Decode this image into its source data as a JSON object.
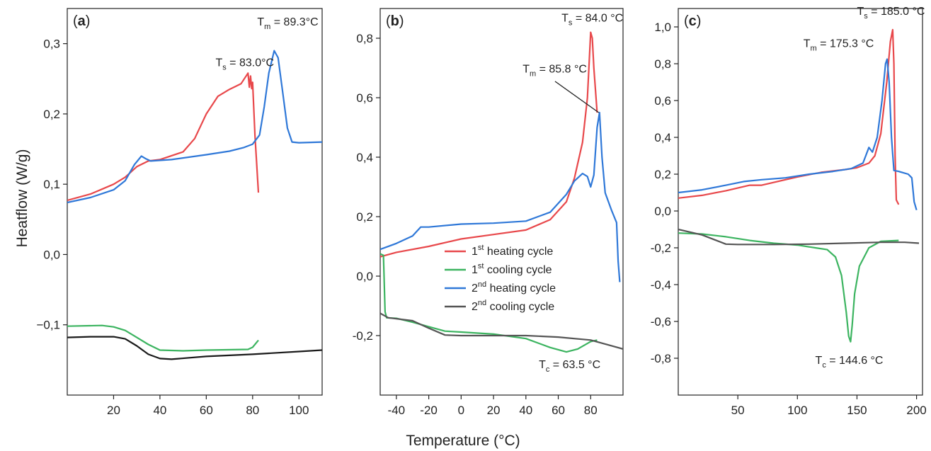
{
  "figure": {
    "y_axis_label": "Heatflow (W/g)",
    "x_axis_label": "Temperature (°C)"
  },
  "colors": {
    "heating1": "#e8484b",
    "cooling1": "#3cb460",
    "heating2": "#2f78d8",
    "cooling2_a": "#1a1a1a",
    "cooling2": "#555555"
  },
  "legend": {
    "placement": "panel b, center",
    "entries": [
      {
        "pre": "1",
        "sup": "st",
        "post": " heating cycle",
        "color": "#e8484b"
      },
      {
        "pre": "1",
        "sup": "st",
        "post": " cooling cycle",
        "color": "#3cb460"
      },
      {
        "pre": "2",
        "sup": "nd",
        "post": " heating cycle",
        "color": "#2f78d8"
      },
      {
        "pre": "2",
        "sup": "nd",
        "post": " cooling cycle",
        "color": "#555555"
      }
    ]
  },
  "chart_data": [
    {
      "type": "line",
      "panel_label": "(a)",
      "xlim": [
        0,
        110
      ],
      "ylim": [
        -0.2,
        0.35
      ],
      "xticks": [
        20,
        40,
        60,
        80,
        100
      ],
      "yticks": [
        -0.1,
        0.0,
        0.1,
        0.2,
        0.3
      ],
      "ytick_labels": [
        "−0,1",
        "0,0",
        "0,1",
        "0,2",
        "0,3"
      ],
      "series": [
        {
          "color": "#e8484b",
          "points": [
            [
              0,
              0.077
            ],
            [
              10,
              0.086
            ],
            [
              20,
              0.1
            ],
            [
              25,
              0.11
            ],
            [
              30,
              0.125
            ],
            [
              35,
              0.133
            ],
            [
              40,
              0.135
            ],
            [
              50,
              0.146
            ],
            [
              55,
              0.165
            ],
            [
              60,
              0.2
            ],
            [
              65,
              0.225
            ],
            [
              70,
              0.235
            ],
            [
              75,
              0.243
            ],
            [
              78,
              0.258
            ],
            [
              78.6,
              0.238
            ],
            [
              79.1,
              0.254
            ],
            [
              79.6,
              0.236
            ],
            [
              80,
              0.245
            ],
            [
              81,
              0.17
            ],
            [
              82.5,
              0.088
            ]
          ]
        },
        {
          "color": "#3cb460",
          "points": [
            [
              0,
              -0.102
            ],
            [
              15,
              -0.101
            ],
            [
              20,
              -0.103
            ],
            [
              25,
              -0.108
            ],
            [
              30,
              -0.118
            ],
            [
              35,
              -0.128
            ],
            [
              40,
              -0.136
            ],
            [
              50,
              -0.137
            ],
            [
              60,
              -0.136
            ],
            [
              78,
              -0.135
            ],
            [
              80,
              -0.132
            ],
            [
              82.5,
              -0.122
            ]
          ]
        },
        {
          "color": "#2f78d8",
          "points": [
            [
              0,
              0.074
            ],
            [
              10,
              0.081
            ],
            [
              20,
              0.092
            ],
            [
              25,
              0.105
            ],
            [
              29,
              0.128
            ],
            [
              32,
              0.14
            ],
            [
              34,
              0.136
            ],
            [
              36,
              0.133
            ],
            [
              45,
              0.135
            ],
            [
              60,
              0.142
            ],
            [
              70,
              0.147
            ],
            [
              76,
              0.152
            ],
            [
              80,
              0.157
            ],
            [
              83,
              0.17
            ],
            [
              85,
              0.21
            ],
            [
              87,
              0.258
            ],
            [
              89.3,
              0.29
            ],
            [
              91,
              0.28
            ],
            [
              93,
              0.23
            ],
            [
              95,
              0.18
            ],
            [
              97,
              0.16
            ],
            [
              100,
              0.159
            ],
            [
              110,
              0.16
            ]
          ]
        },
        {
          "color": "#1a1a1a",
          "points": [
            [
              0,
              -0.118
            ],
            [
              10,
              -0.117
            ],
            [
              20,
              -0.117
            ],
            [
              25,
              -0.12
            ],
            [
              30,
              -0.13
            ],
            [
              35,
              -0.142
            ],
            [
              40,
              -0.148
            ],
            [
              45,
              -0.149
            ],
            [
              60,
              -0.145
            ],
            [
              80,
              -0.142
            ],
            [
              100,
              -0.138
            ],
            [
              110,
              -0.136
            ]
          ]
        }
      ],
      "annotations": [
        {
          "pre": "T",
          "sub": "m",
          "post": " = 89.3°C",
          "x": 82,
          "y": 0.326
        },
        {
          "pre": "T",
          "sub": "s",
          "post": " = 83.0°C",
          "x": 64,
          "y": 0.268
        }
      ]
    },
    {
      "type": "line",
      "panel_label": "(b)",
      "xlim": [
        -50,
        100
      ],
      "ylim": [
        -0.4,
        0.9
      ],
      "xticks": [
        -40,
        -20,
        0,
        20,
        40,
        60,
        80
      ],
      "yticks": [
        -0.2,
        0.0,
        0.2,
        0.4,
        0.6,
        0.8
      ],
      "ytick_labels": [
        "-0,2",
        "0,0",
        "0,2",
        "0,4",
        "0,6",
        "0,8"
      ],
      "series": [
        {
          "color": "#e8484b",
          "points": [
            [
              -50,
              0.065
            ],
            [
              -40,
              0.08
            ],
            [
              -20,
              0.1
            ],
            [
              0,
              0.125
            ],
            [
              20,
              0.14
            ],
            [
              40,
              0.155
            ],
            [
              55,
              0.19
            ],
            [
              65,
              0.25
            ],
            [
              70,
              0.33
            ],
            [
              75,
              0.45
            ],
            [
              78,
              0.6
            ],
            [
              80,
              0.82
            ],
            [
              81,
              0.8
            ],
            [
              82,
              0.7
            ],
            [
              84,
              0.55
            ]
          ]
        },
        {
          "color": "#3cb460",
          "points": [
            [
              -50,
              0.075
            ],
            [
              -48,
              0.07
            ],
            [
              -47,
              -0.12
            ],
            [
              -46,
              -0.14
            ],
            [
              -40,
              -0.142
            ],
            [
              -30,
              -0.155
            ],
            [
              -20,
              -0.17
            ],
            [
              -10,
              -0.185
            ],
            [
              0,
              -0.188
            ],
            [
              20,
              -0.195
            ],
            [
              40,
              -0.21
            ],
            [
              55,
              -0.24
            ],
            [
              65,
              -0.255
            ],
            [
              72,
              -0.245
            ],
            [
              80,
              -0.22
            ],
            [
              84,
              -0.215
            ]
          ]
        },
        {
          "color": "#2f78d8",
          "points": [
            [
              -50,
              0.09
            ],
            [
              -40,
              0.11
            ],
            [
              -30,
              0.135
            ],
            [
              -25,
              0.165
            ],
            [
              -20,
              0.165
            ],
            [
              0,
              0.175
            ],
            [
              20,
              0.178
            ],
            [
              40,
              0.185
            ],
            [
              55,
              0.215
            ],
            [
              65,
              0.275
            ],
            [
              70,
              0.32
            ],
            [
              75,
              0.345
            ],
            [
              78,
              0.335
            ],
            [
              80,
              0.3
            ],
            [
              82,
              0.34
            ],
            [
              84,
              0.5
            ],
            [
              85.5,
              0.55
            ],
            [
              87,
              0.4
            ],
            [
              89,
              0.28
            ],
            [
              93,
              0.22
            ],
            [
              96,
              0.18
            ],
            [
              97,
              0.05
            ],
            [
              98,
              -0.02
            ]
          ]
        },
        {
          "color": "#555555",
          "points": [
            [
              -50,
              -0.125
            ],
            [
              -45,
              -0.14
            ],
            [
              -30,
              -0.15
            ],
            [
              -20,
              -0.175
            ],
            [
              -10,
              -0.198
            ],
            [
              0,
              -0.2
            ],
            [
              20,
              -0.2
            ],
            [
              40,
              -0.2
            ],
            [
              60,
              -0.205
            ],
            [
              80,
              -0.215
            ],
            [
              90,
              -0.23
            ],
            [
              100,
              -0.245
            ]
          ]
        }
      ],
      "annotations": [
        {
          "pre": "T",
          "sub": "s",
          "post": " = 84.0 °C",
          "x": 62,
          "y": 0.856
        },
        {
          "pre": "T",
          "sub": "m",
          "post": " = 85.8 °C",
          "x": 38,
          "y": 0.685
        },
        {
          "pre": "T",
          "sub": "c",
          "post": " = 63.5 °C",
          "x": 48,
          "y": -0.31
        }
      ]
    },
    {
      "type": "line",
      "panel_label": "(c)",
      "xlim": [
        0,
        205
      ],
      "ylim": [
        -1.0,
        1.1
      ],
      "xticks": [
        50,
        100,
        150,
        200
      ],
      "yticks": [
        -0.8,
        -0.6,
        -0.4,
        -0.2,
        0.0,
        0.2,
        0.4,
        0.6,
        0.8,
        1.0
      ],
      "ytick_labels": [
        "-0,8",
        "-0,6",
        "-0,4",
        "-0,2",
        "0,0",
        "0,2",
        "0,4",
        "0,6",
        "0,8",
        "1,0"
      ],
      "series": [
        {
          "color": "#e8484b",
          "points": [
            [
              0,
              0.07
            ],
            [
              20,
              0.085
            ],
            [
              40,
              0.11
            ],
            [
              60,
              0.14
            ],
            [
              70,
              0.14
            ],
            [
              80,
              0.155
            ],
            [
              100,
              0.185
            ],
            [
              120,
              0.21
            ],
            [
              140,
              0.225
            ],
            [
              150,
              0.235
            ],
            [
              160,
              0.26
            ],
            [
              165,
              0.3
            ],
            [
              170,
              0.42
            ],
            [
              175,
              0.7
            ],
            [
              178,
              0.92
            ],
            [
              180,
              0.985
            ],
            [
              181,
              0.8
            ],
            [
              182,
              0.3
            ],
            [
              183,
              0.06
            ],
            [
              185,
              0.035
            ]
          ]
        },
        {
          "color": "#3cb460",
          "points": [
            [
              0,
              -0.12
            ],
            [
              20,
              -0.125
            ],
            [
              40,
              -0.14
            ],
            [
              60,
              -0.16
            ],
            [
              80,
              -0.175
            ],
            [
              100,
              -0.185
            ],
            [
              115,
              -0.2
            ],
            [
              125,
              -0.21
            ],
            [
              132,
              -0.25
            ],
            [
              137,
              -0.35
            ],
            [
              141,
              -0.55
            ],
            [
              143,
              -0.68
            ],
            [
              144.6,
              -0.71
            ],
            [
              146,
              -0.62
            ],
            [
              148,
              -0.45
            ],
            [
              152,
              -0.3
            ],
            [
              160,
              -0.2
            ],
            [
              170,
              -0.165
            ],
            [
              185,
              -0.16
            ]
          ]
        },
        {
          "color": "#2f78d8",
          "points": [
            [
              0,
              0.1
            ],
            [
              20,
              0.115
            ],
            [
              40,
              0.14
            ],
            [
              55,
              0.16
            ],
            [
              70,
              0.17
            ],
            [
              90,
              0.18
            ],
            [
              110,
              0.2
            ],
            [
              130,
              0.215
            ],
            [
              145,
              0.23
            ],
            [
              155,
              0.26
            ],
            [
              160,
              0.345
            ],
            [
              163,
              0.32
            ],
            [
              167,
              0.4
            ],
            [
              171,
              0.6
            ],
            [
              174,
              0.8
            ],
            [
              175.3,
              0.825
            ],
            [
              177,
              0.7
            ],
            [
              179,
              0.4
            ],
            [
              181,
              0.22
            ],
            [
              185,
              0.215
            ],
            [
              193,
              0.2
            ],
            [
              196,
              0.18
            ],
            [
              198,
              0.05
            ],
            [
              200,
              0.005
            ]
          ]
        },
        {
          "color": "#555555",
          "points": [
            [
              0,
              -0.1
            ],
            [
              20,
              -0.13
            ],
            [
              30,
              -0.155
            ],
            [
              40,
              -0.18
            ],
            [
              50,
              -0.182
            ],
            [
              80,
              -0.182
            ],
            [
              110,
              -0.18
            ],
            [
              140,
              -0.175
            ],
            [
              170,
              -0.17
            ],
            [
              190,
              -0.17
            ],
            [
              202,
              -0.175
            ]
          ]
        }
      ],
      "annotations": [
        {
          "pre": "T",
          "sub": "s",
          "post": " = 185.0 °C",
          "x": 150,
          "y": 1.065
        },
        {
          "pre": "T",
          "sub": "m",
          "post": " = 175.3 °C",
          "x": 105,
          "y": 0.89
        },
        {
          "pre": "T",
          "sub": "c",
          "post": " =  144.6 °C",
          "x": 115,
          "y": -0.83
        }
      ]
    }
  ]
}
